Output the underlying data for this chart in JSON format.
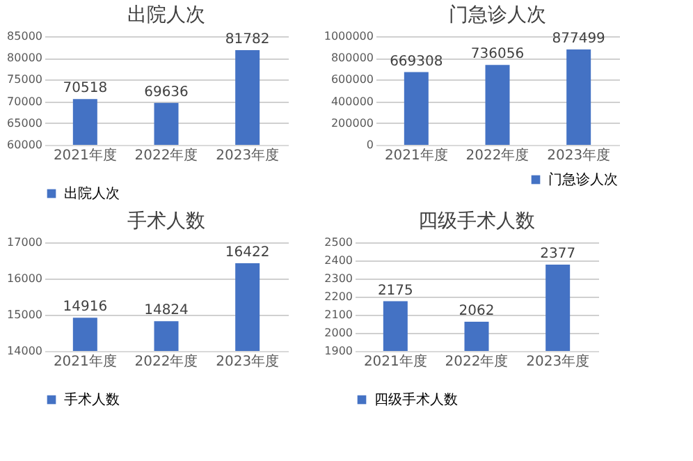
{
  "chart_data": [
    {
      "type": "bar",
      "title": "出院人次",
      "categories": [
        "2021年度",
        "2022年度",
        "2023年度"
      ],
      "series": [
        {
          "name": "出院人次",
          "color": "#4472c4",
          "values": [
            70518,
            69636,
            81782
          ]
        }
      ],
      "ylim": [
        60000,
        85000
      ],
      "yticks": [
        60000,
        65000,
        70000,
        75000,
        80000,
        85000
      ],
      "grid": "y",
      "legend": "bottom",
      "data_labels": true
    },
    {
      "type": "bar",
      "title": "门急诊人次",
      "categories": [
        "2021年度",
        "2022年度",
        "2023年度"
      ],
      "series": [
        {
          "name": "门急诊人次",
          "color": "#4472c4",
          "values": [
            669308,
            736056,
            877499
          ]
        }
      ],
      "ylim": [
        0,
        1000000
      ],
      "yticks": [
        0,
        200000,
        400000,
        600000,
        800000,
        1000000
      ],
      "grid": "y",
      "legend": "bottom right",
      "data_labels": true
    },
    {
      "type": "bar",
      "title": "手术人数",
      "categories": [
        "2021年度",
        "2022年度",
        "2023年度"
      ],
      "series": [
        {
          "name": "手术人数",
          "color": "#4472c4",
          "values": [
            14916,
            14824,
            16422
          ]
        }
      ],
      "ylim": [
        14000,
        17000
      ],
      "yticks": [
        14000,
        15000,
        16000,
        17000
      ],
      "grid": "y",
      "legend": "bottom",
      "data_labels": true
    },
    {
      "type": "bar",
      "title": "四级手术人数",
      "categories": [
        "2021年度",
        "2022年度",
        "2023年度"
      ],
      "series": [
        {
          "name": "四级手术人数",
          "color": "#4472c4",
          "values": [
            2175,
            2062,
            2377
          ]
        }
      ],
      "ylim": [
        1900,
        2500
      ],
      "yticks": [
        1900,
        2000,
        2100,
        2200,
        2300,
        2400,
        2500
      ],
      "grid": "y",
      "legend": "bottom",
      "data_labels": true
    }
  ]
}
